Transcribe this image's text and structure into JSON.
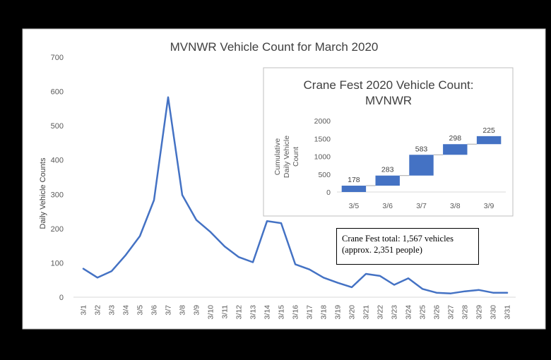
{
  "chart_data": [
    {
      "type": "line",
      "title": "MVNWR Vehicle Count for March 2020",
      "xlabel": "",
      "ylabel": "Daily Vehicle Counts",
      "ylim": [
        0,
        700
      ],
      "yticks": [
        0,
        100,
        200,
        300,
        400,
        500,
        600,
        700
      ],
      "grid": false,
      "categories": [
        "3/1",
        "3/2",
        "3/3",
        "3/4",
        "3/5",
        "3/6",
        "3/7",
        "3/8",
        "3/9",
        "3/10",
        "3/11",
        "3/12",
        "3/13",
        "3/14",
        "3/15",
        "3/16",
        "3/17",
        "3/18",
        "3/19",
        "3/20",
        "3/21",
        "3/22",
        "3/23",
        "3/24",
        "3/25",
        "3/26",
        "3/27",
        "3/28",
        "3/29",
        "3/30",
        "3/31"
      ],
      "series": [
        {
          "color": "#4472C4",
          "values": [
            83,
            57,
            76,
            123,
            178,
            283,
            583,
            298,
            225,
            190,
            148,
            117,
            102,
            222,
            216,
            96,
            81,
            57,
            42,
            29,
            68,
            62,
            36,
            55,
            24,
            13,
            11,
            17,
            21,
            13,
            13
          ]
        }
      ],
      "annotation": {
        "line1": "Crane Fest total: 1,567 vehicles",
        "line2": "(approx. 2,351 people)"
      }
    },
    {
      "type": "bar",
      "subtype": "waterfall",
      "title_line1": "Crane Fest 2020 Vehicle Count:",
      "title_line2": "MVNWR",
      "xlabel": "",
      "ylabel_lines": [
        "Cumulative",
        "Daily Vehicle",
        "Count"
      ],
      "ylim": [
        0,
        2000
      ],
      "yticks": [
        0,
        500,
        1000,
        1500,
        2000
      ],
      "grid": false,
      "categories": [
        "3/5",
        "3/6",
        "3/7",
        "3/8",
        "3/9"
      ],
      "values": [
        178,
        283,
        583,
        298,
        225
      ],
      "labels": [
        "178",
        "283",
        "583",
        "298",
        "225"
      ],
      "color": "#4472C4"
    }
  ]
}
